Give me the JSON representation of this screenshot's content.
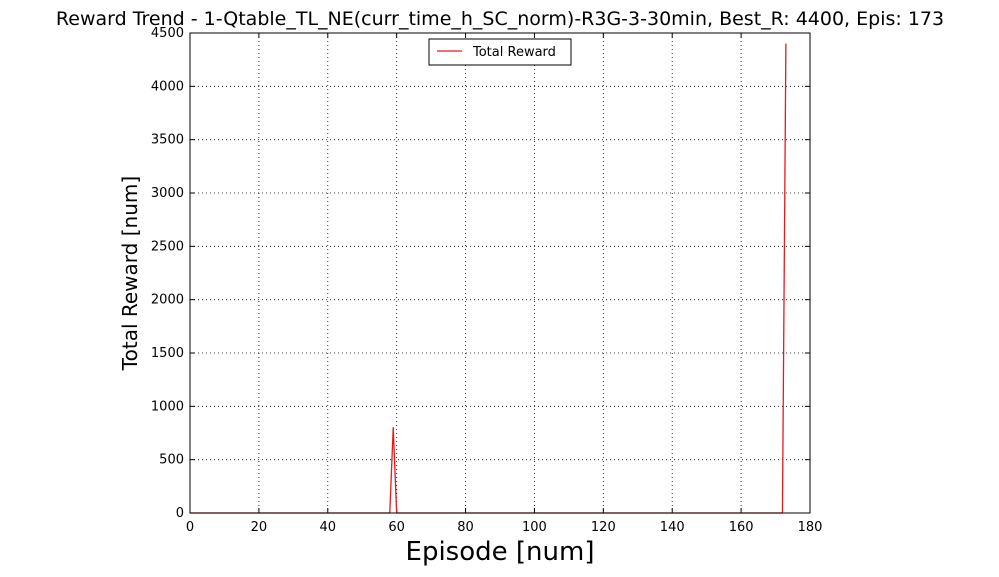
{
  "chart_data": {
    "type": "line",
    "title": "Reward Trend - 1-Qtable_TL_NE(curr_time_h_SC_norm)-R3G-3-30min, Best_R: 4400, Epis: 173",
    "xlabel": "Episode [num]",
    "ylabel": "Total Reward [num]",
    "xlim": [
      0,
      180
    ],
    "ylim": [
      0,
      4500
    ],
    "xticks": [
      0,
      20,
      40,
      60,
      80,
      100,
      120,
      140,
      160,
      180
    ],
    "yticks": [
      0,
      500,
      1000,
      1500,
      2000,
      2500,
      3000,
      3500,
      4000,
      4500
    ],
    "grid": true,
    "legend_position": "top-center",
    "series": [
      {
        "name": "Total Reward",
        "color": "#e41a1c",
        "x": [
          0,
          58,
          59,
          60,
          172,
          173
        ],
        "y": [
          0,
          0,
          800,
          0,
          0,
          4400
        ]
      }
    ]
  }
}
